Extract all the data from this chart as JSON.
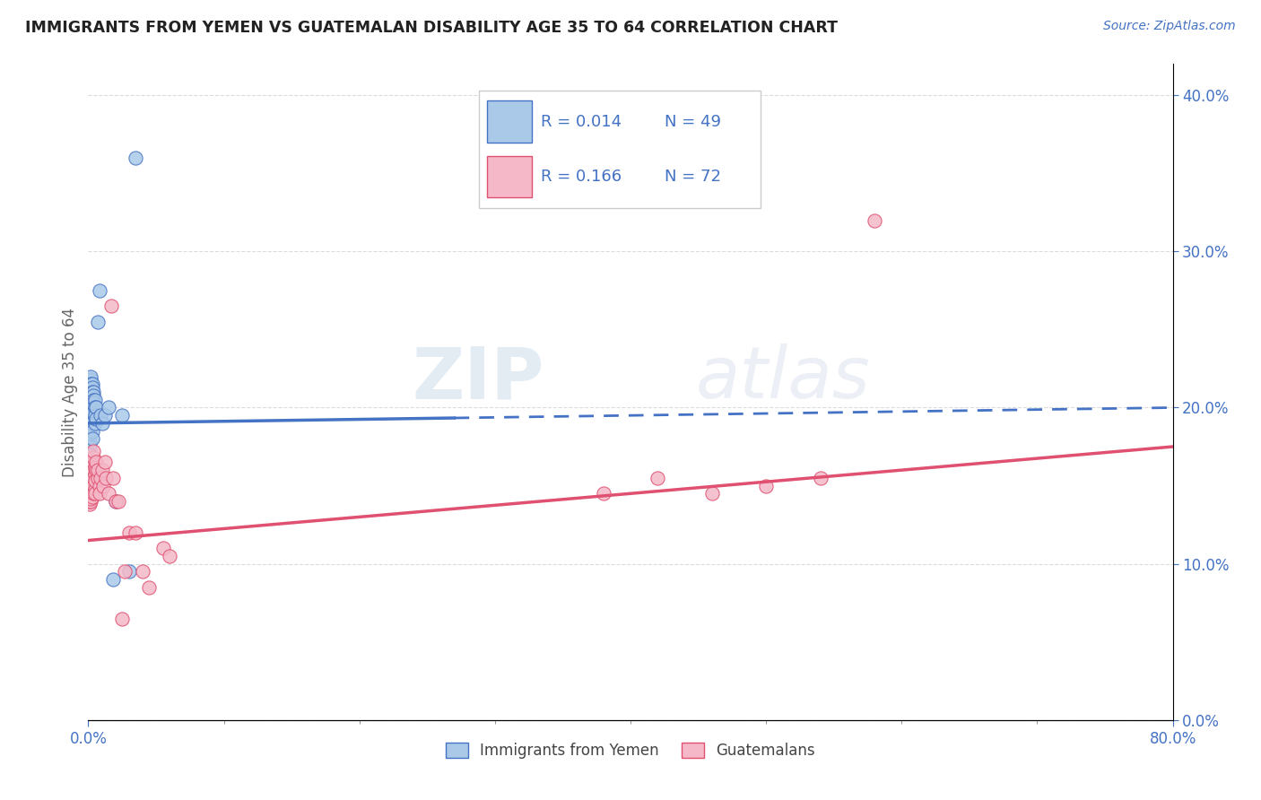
{
  "title": "IMMIGRANTS FROM YEMEN VS GUATEMALAN DISABILITY AGE 35 TO 64 CORRELATION CHART",
  "source_text": "Source: ZipAtlas.com",
  "ylabel": "Disability Age 35 to 64",
  "legend_label_blue": "Immigrants from Yemen",
  "legend_label_pink": "Guatemalans",
  "legend_r_blue": "R = 0.014",
  "legend_n_blue": "N = 49",
  "legend_r_pink": "R = 0.166",
  "legend_n_pink": "N = 72",
  "color_blue": "#aac9e8",
  "color_pink": "#f4b8c8",
  "color_blue_line": "#4472c4",
  "color_pink_line": "#e05070",
  "color_text": "#4472c4",
  "watermark_zip": "ZIP",
  "watermark_atlas": "atlas",
  "xlim": [
    0.0,
    0.8
  ],
  "ylim": [
    0.0,
    0.42
  ],
  "blue_scatter_x": [
    0.001,
    0.001,
    0.001,
    0.001,
    0.001,
    0.001,
    0.002,
    0.002,
    0.002,
    0.002,
    0.002,
    0.002,
    0.002,
    0.002,
    0.002,
    0.003,
    0.003,
    0.003,
    0.003,
    0.003,
    0.003,
    0.003,
    0.003,
    0.003,
    0.003,
    0.003,
    0.004,
    0.004,
    0.004,
    0.004,
    0.004,
    0.004,
    0.005,
    0.005,
    0.005,
    0.005,
    0.006,
    0.006,
    0.007,
    0.008,
    0.009,
    0.01,
    0.012,
    0.015,
    0.018,
    0.02,
    0.025,
    0.03,
    0.035
  ],
  "blue_scatter_y": [
    0.188,
    0.183,
    0.178,
    0.175,
    0.17,
    0.165,
    0.2,
    0.21,
    0.215,
    0.218,
    0.22,
    0.215,
    0.21,
    0.205,
    0.195,
    0.215,
    0.213,
    0.21,
    0.207,
    0.205,
    0.2,
    0.197,
    0.193,
    0.19,
    0.185,
    0.18,
    0.21,
    0.208,
    0.205,
    0.203,
    0.2,
    0.197,
    0.205,
    0.2,
    0.195,
    0.19,
    0.2,
    0.193,
    0.255,
    0.275,
    0.195,
    0.19,
    0.195,
    0.2,
    0.09,
    0.14,
    0.195,
    0.095,
    0.36
  ],
  "pink_scatter_x": [
    0.001,
    0.001,
    0.001,
    0.001,
    0.001,
    0.001,
    0.001,
    0.001,
    0.001,
    0.001,
    0.002,
    0.002,
    0.002,
    0.002,
    0.002,
    0.002,
    0.002,
    0.002,
    0.002,
    0.002,
    0.003,
    0.003,
    0.003,
    0.003,
    0.003,
    0.003,
    0.003,
    0.003,
    0.003,
    0.003,
    0.004,
    0.004,
    0.004,
    0.004,
    0.004,
    0.004,
    0.004,
    0.005,
    0.005,
    0.005,
    0.005,
    0.005,
    0.006,
    0.006,
    0.007,
    0.007,
    0.008,
    0.008,
    0.009,
    0.01,
    0.011,
    0.012,
    0.013,
    0.015,
    0.017,
    0.018,
    0.02,
    0.022,
    0.025,
    0.027,
    0.03,
    0.035,
    0.04,
    0.045,
    0.055,
    0.06,
    0.38,
    0.42,
    0.46,
    0.5,
    0.54,
    0.58
  ],
  "pink_scatter_y": [
    0.145,
    0.15,
    0.155,
    0.143,
    0.138,
    0.16,
    0.165,
    0.155,
    0.148,
    0.14,
    0.155,
    0.16,
    0.165,
    0.15,
    0.145,
    0.14,
    0.153,
    0.148,
    0.142,
    0.16,
    0.155,
    0.16,
    0.165,
    0.15,
    0.155,
    0.148,
    0.153,
    0.143,
    0.162,
    0.157,
    0.155,
    0.16,
    0.165,
    0.15,
    0.145,
    0.168,
    0.172,
    0.157,
    0.162,
    0.148,
    0.145,
    0.153,
    0.16,
    0.165,
    0.155,
    0.16,
    0.15,
    0.145,
    0.155,
    0.16,
    0.15,
    0.165,
    0.155,
    0.145,
    0.265,
    0.155,
    0.14,
    0.14,
    0.065,
    0.095,
    0.12,
    0.12,
    0.095,
    0.085,
    0.11,
    0.105,
    0.145,
    0.155,
    0.145,
    0.15,
    0.155,
    0.32
  ]
}
